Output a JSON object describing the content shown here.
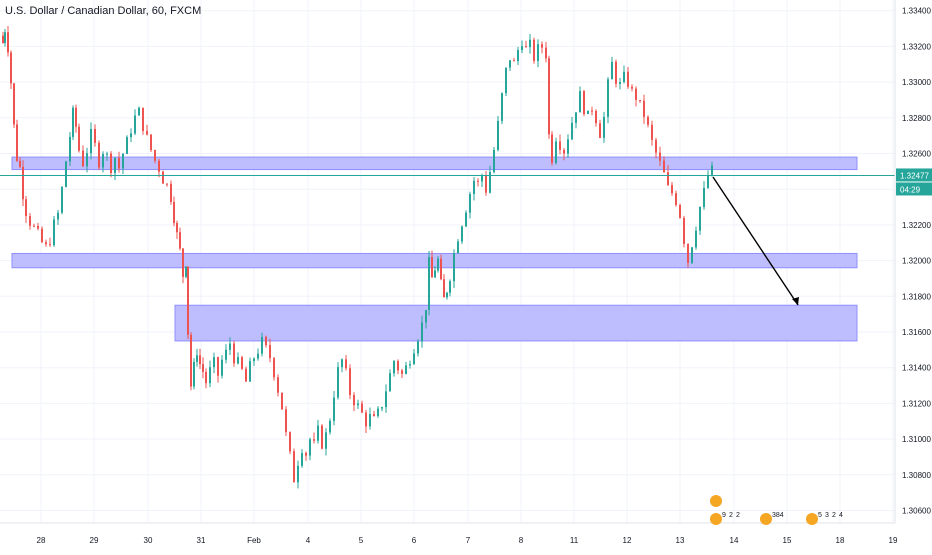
{
  "header": {
    "symbol_title": "U.S. Dollar / Canadian Dollar, 60, FXCM"
  },
  "colors": {
    "up": "#26a69a",
    "down": "#ef5350",
    "zone_fill": "#b3b3ff",
    "zone_stroke": "#8f8fff",
    "grid": "#f0f3fa",
    "axis_text": "#131722",
    "price_line": "#26a69a",
    "arrow": "#000000"
  },
  "chart_data": {
    "type": "candlestick",
    "title": "U.S. Dollar / Canadian Dollar, 60, FXCM",
    "y_ticks": [
      "1.33400",
      "1.33200",
      "1.33000",
      "1.32800",
      "1.32600",
      "1.32400",
      "1.32200",
      "1.32000",
      "1.31800",
      "1.31600",
      "1.31400",
      "1.31200",
      "1.31000",
      "1.30800",
      "1.30600"
    ],
    "x_ticks": [
      "28",
      "29",
      "30",
      "31",
      "Feb",
      "4",
      "5",
      "6",
      "7",
      "8",
      "11",
      "12",
      "13",
      "14",
      "15",
      "18",
      "19"
    ],
    "ylim": [
      1.3053,
      1.3346
    ],
    "price_close": [
      [
        0,
        1.3326
      ],
      [
        3,
        1.3322
      ],
      [
        5,
        1.333
      ],
      [
        8,
        1.332
      ],
      [
        11,
        1.33
      ],
      [
        14,
        1.3275
      ],
      [
        17,
        1.3258
      ],
      [
        20,
        1.3252
      ],
      [
        23,
        1.3238
      ],
      [
        26,
        1.3228
      ],
      [
        30,
        1.3222
      ],
      [
        34,
        1.3218
      ],
      [
        38,
        1.3214
      ],
      [
        42,
        1.321
      ],
      [
        46,
        1.3207
      ],
      [
        50,
        1.3212
      ],
      [
        54,
        1.322
      ],
      [
        58,
        1.3226
      ],
      [
        62,
        1.324
      ],
      [
        66,
        1.3256
      ],
      [
        70,
        1.327
      ],
      [
        73,
        1.3282
      ],
      [
        76,
        1.3275
      ],
      [
        79,
        1.3262
      ],
      [
        83,
        1.3255
      ],
      [
        87,
        1.3262
      ],
      [
        91,
        1.327
      ],
      [
        95,
        1.3264
      ],
      [
        99,
        1.3256
      ],
      [
        103,
        1.3262
      ],
      [
        107,
        1.3258
      ],
      [
        111,
        1.3253
      ],
      [
        115,
        1.3258
      ],
      [
        119,
        1.3252
      ],
      [
        123,
        1.326
      ],
      [
        127,
        1.3266
      ],
      [
        131,
        1.3274
      ],
      [
        135,
        1.328
      ],
      [
        139,
        1.3283
      ],
      [
        143,
        1.3276
      ],
      [
        147,
        1.3268
      ],
      [
        151,
        1.3262
      ],
      [
        155,
        1.3256
      ],
      [
        159,
        1.3252
      ],
      [
        163,
        1.3246
      ],
      [
        167,
        1.3242
      ],
      [
        171,
        1.3236
      ],
      [
        174,
        1.3225
      ],
      [
        177,
        1.3214
      ],
      [
        180,
        1.3205
      ],
      [
        183,
        1.3192
      ],
      [
        186,
        1.32
      ],
      [
        188,
        1.316
      ],
      [
        191,
        1.313
      ],
      [
        194,
        1.314
      ],
      [
        197,
        1.315
      ],
      [
        200,
        1.3142
      ],
      [
        203,
        1.3138
      ],
      [
        206,
        1.3132
      ],
      [
        210,
        1.3138
      ],
      [
        214,
        1.3142
      ],
      [
        218,
        1.3136
      ],
      [
        222,
        1.3144
      ],
      [
        226,
        1.3148
      ],
      [
        230,
        1.3154
      ],
      [
        234,
        1.3146
      ],
      [
        238,
        1.3142
      ],
      [
        242,
        1.3138
      ],
      [
        246,
        1.3132
      ],
      [
        250,
        1.314
      ],
      [
        254,
        1.3146
      ],
      [
        258,
        1.315
      ],
      [
        262,
        1.3154
      ],
      [
        266,
        1.315
      ],
      [
        270,
        1.3146
      ],
      [
        274,
        1.3138
      ],
      [
        278,
        1.3128
      ],
      [
        282,
        1.3118
      ],
      [
        286,
        1.3102
      ],
      [
        290,
        1.309
      ],
      [
        294,
        1.3078
      ],
      [
        298,
        1.3088
      ],
      [
        302,
        1.3096
      ],
      [
        306,
        1.3092
      ],
      [
        310,
        1.31
      ],
      [
        314,
        1.3096
      ],
      [
        318,
        1.3104
      ],
      [
        322,
        1.3098
      ],
      [
        326,
        1.3102
      ],
      [
        330,
        1.3112
      ],
      [
        334,
        1.3126
      ],
      [
        338,
        1.3138
      ],
      [
        342,
        1.3144
      ],
      [
        346,
        1.3136
      ],
      [
        350,
        1.3126
      ],
      [
        354,
        1.3122
      ],
      [
        358,
        1.3118
      ],
      [
        362,
        1.3114
      ],
      [
        366,
        1.311
      ],
      [
        370,
        1.3112
      ],
      [
        374,
        1.311
      ],
      [
        378,
        1.3114
      ],
      [
        382,
        1.312
      ],
      [
        386,
        1.3128
      ],
      [
        390,
        1.3136
      ],
      [
        394,
        1.3144
      ],
      [
        398,
        1.314
      ],
      [
        402,
        1.3136
      ],
      [
        406,
        1.314
      ],
      [
        410,
        1.3146
      ],
      [
        414,
        1.3152
      ],
      [
        418,
        1.3158
      ],
      [
        422,
        1.3164
      ],
      [
        426,
        1.3175
      ],
      [
        429,
        1.3198
      ],
      [
        432,
        1.319
      ],
      [
        435,
        1.3196
      ],
      [
        438,
        1.32
      ],
      [
        441,
        1.3186
      ],
      [
        444,
        1.3178
      ],
      [
        447,
        1.3184
      ],
      [
        450,
        1.3192
      ],
      [
        454,
        1.3204
      ],
      [
        458,
        1.3214
      ],
      [
        462,
        1.3222
      ],
      [
        466,
        1.323
      ],
      [
        470,
        1.3238
      ],
      [
        474,
        1.3245
      ],
      [
        478,
        1.3243
      ],
      [
        482,
        1.3248
      ],
      [
        486,
        1.324
      ],
      [
        490,
        1.325
      ],
      [
        494,
        1.3262
      ],
      [
        498,
        1.3276
      ],
      [
        502,
        1.3292
      ],
      [
        506,
        1.3306
      ],
      [
        510,
        1.3314
      ],
      [
        514,
        1.331
      ],
      [
        518,
        1.3318
      ],
      [
        522,
        1.3324
      ],
      [
        526,
        1.3318
      ],
      [
        530,
        1.332
      ],
      [
        534,
        1.3314
      ],
      [
        538,
        1.3318
      ],
      [
        542,
        1.332
      ],
      [
        546,
        1.3316
      ],
      [
        549,
        1.327
      ],
      [
        552,
        1.3258
      ],
      [
        556,
        1.327
      ],
      [
        560,
        1.3266
      ],
      [
        564,
        1.3262
      ],
      [
        568,
        1.327
      ],
      [
        572,
        1.3278
      ],
      [
        576,
        1.3286
      ],
      [
        580,
        1.3292
      ],
      [
        584,
        1.3286
      ],
      [
        588,
        1.328
      ],
      [
        592,
        1.3286
      ],
      [
        596,
        1.328
      ],
      [
        600,
        1.3272
      ],
      [
        604,
        1.328
      ],
      [
        608,
        1.3298
      ],
      [
        612,
        1.331
      ],
      [
        616,
        1.3302
      ],
      [
        620,
        1.3298
      ],
      [
        624,
        1.3302
      ],
      [
        628,
        1.33
      ],
      [
        632,
        1.3294
      ],
      [
        636,
        1.3292
      ],
      [
        640,
        1.3286
      ],
      [
        644,
        1.3282
      ],
      [
        648,
        1.3274
      ],
      [
        652,
        1.3266
      ],
      [
        656,
        1.326
      ],
      [
        660,
        1.3254
      ],
      [
        664,
        1.3248
      ],
      [
        668,
        1.324
      ],
      [
        672,
        1.3238
      ],
      [
        676,
        1.3234
      ],
      [
        680,
        1.3226
      ],
      [
        684,
        1.3212
      ],
      [
        688,
        1.32
      ],
      [
        692,
        1.321
      ],
      [
        696,
        1.322
      ],
      [
        700,
        1.323
      ],
      [
        704,
        1.3238
      ],
      [
        708,
        1.3248
      ],
      [
        712,
        1.325
      ]
    ],
    "last_price": "1.32477",
    "countdown": "04:29",
    "zones": [
      {
        "x_from": 12,
        "x_to": 857,
        "y_from": 1.3251,
        "y_to": 1.3258
      },
      {
        "x_from": 12,
        "x_to": 857,
        "y_from": 1.3196,
        "y_to": 1.3204
      },
      {
        "x_from": 175,
        "x_to": 857,
        "y_from": 1.3155,
        "y_to": 1.3175
      }
    ],
    "events": [
      {
        "x": 716,
        "labels": [
          "9",
          "2",
          "2"
        ]
      },
      {
        "x": 766,
        "labels": [
          "384"
        ]
      },
      {
        "x": 812,
        "labels": [
          "5",
          "3",
          "2",
          "4"
        ]
      }
    ]
  }
}
